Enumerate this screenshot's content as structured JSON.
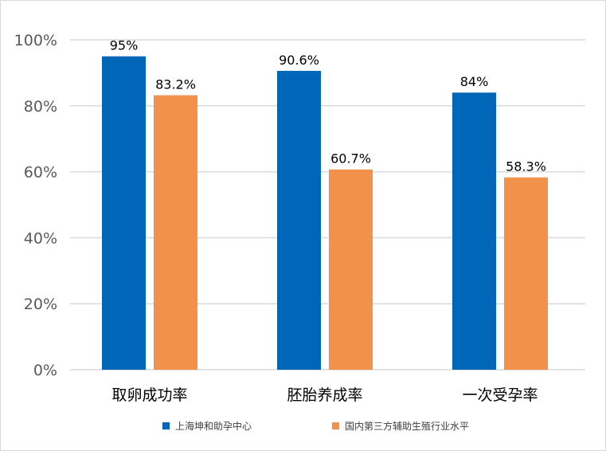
{
  "chart_data": {
    "type": "bar",
    "categories": [
      "取卵成功率",
      "胚胎养成率",
      "一次受孕率"
    ],
    "series": [
      {
        "name": "上海坤和助孕中心",
        "values": [
          95,
          90.6,
          84
        ],
        "labels": [
          "95%",
          "90.6%",
          "84%"
        ],
        "color": "#0066b8"
      },
      {
        "name": "国内第三方辅助生殖行业水平",
        "values": [
          83.2,
          60.7,
          58.3
        ],
        "labels": [
          "83.2%",
          "60.7%",
          "58.3%"
        ],
        "color": "#f2924a"
      }
    ],
    "yticks": [
      "0%",
      "20%",
      "40%",
      "60%",
      "80%",
      "100%"
    ],
    "ylim": [
      0,
      100
    ],
    "grid": true,
    "legend": "bottom",
    "gridline_color": "#d9d9d9"
  }
}
